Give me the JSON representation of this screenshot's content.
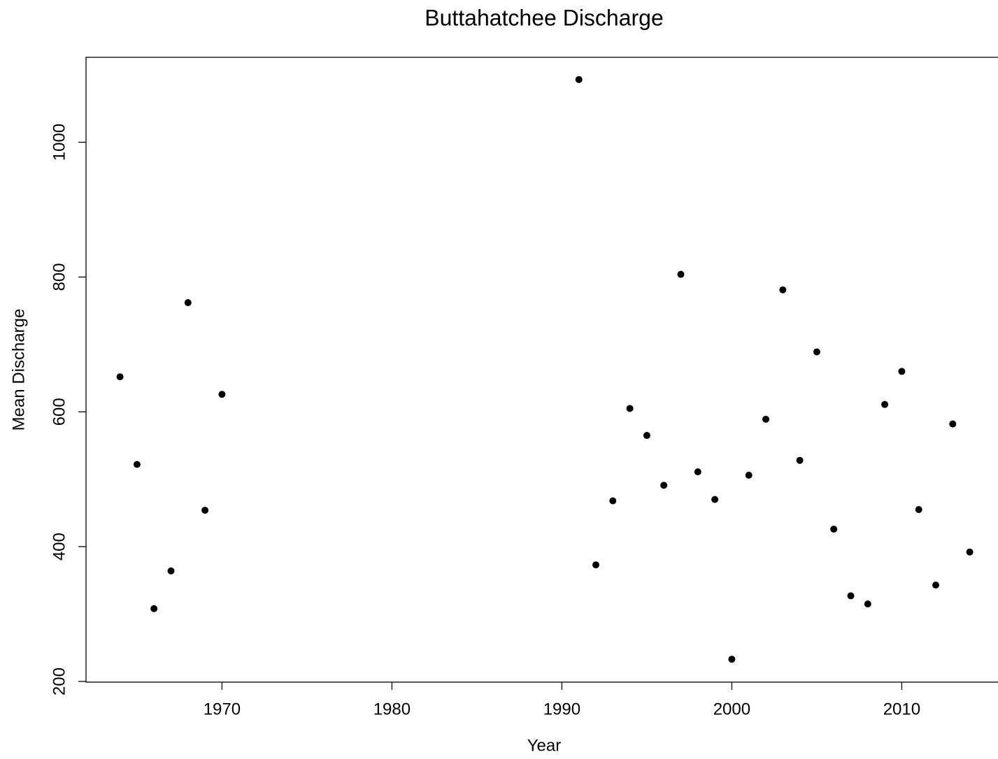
{
  "chart_data": {
    "type": "scatter",
    "title": "Buttahatchee Discharge",
    "x_label": "Year",
    "y_label": "Mean Discharge",
    "color": "#000000",
    "x": [
      1964,
      1965,
      1966,
      1967,
      1968,
      1969,
      1970,
      1991,
      1992,
      1993,
      1994,
      1995,
      1996,
      1997,
      1998,
      1999,
      2000,
      2001,
      2002,
      2003,
      2004,
      2005,
      2006,
      2007,
      2008,
      2009,
      2010,
      2011,
      2012,
      2013,
      2014
    ],
    "values": [
      652,
      522,
      308,
      364,
      762,
      454,
      626,
      1093,
      373,
      468,
      605,
      565,
      491,
      804,
      511,
      470,
      233,
      506,
      589,
      781,
      528,
      689,
      426,
      327,
      315,
      611,
      660,
      455,
      343,
      582,
      392
    ],
    "xlim": [
      1962,
      2016
    ],
    "xticks": [
      1970,
      1980,
      1990,
      2000,
      2010
    ],
    "ylim": [
      199,
      1126
    ],
    "yticks": [
      200,
      400,
      600,
      800,
      1000
    ]
  }
}
